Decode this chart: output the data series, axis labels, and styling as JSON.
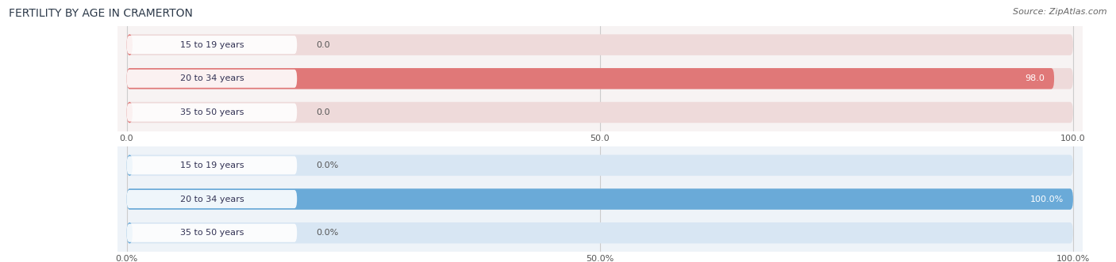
{
  "title": "FERTILITY BY AGE IN CRAMERTON",
  "source": "Source: ZipAtlas.com",
  "top_chart": {
    "categories": [
      "15 to 19 years",
      "20 to 34 years",
      "35 to 50 years"
    ],
    "values": [
      0.0,
      98.0,
      0.0
    ],
    "xlim": [
      0,
      100
    ],
    "xticks": [
      0.0,
      50.0,
      100.0
    ],
    "xtick_labels": [
      "0.0",
      "50.0",
      "100.0"
    ],
    "bar_color": "#e07878",
    "bar_bg_color": "#eedada",
    "chart_bg_color": "#f7f3f3",
    "label_color": "#ffffff",
    "value_outside_color": "#555555",
    "value_inside_color": "#ffffff"
  },
  "bottom_chart": {
    "categories": [
      "15 to 19 years",
      "20 to 34 years",
      "35 to 50 years"
    ],
    "values": [
      0.0,
      100.0,
      0.0
    ],
    "xlim": [
      0,
      100
    ],
    "xticks": [
      0.0,
      50.0,
      100.0
    ],
    "xtick_labels": [
      "0.0%",
      "50.0%",
      "100.0%"
    ],
    "bar_color": "#6aaad8",
    "bar_bg_color": "#d8e6f3",
    "chart_bg_color": "#eef3f8",
    "label_color": "#ffffff",
    "value_outside_color": "#555555",
    "value_inside_color": "#ffffff"
  },
  "fig_bg_color": "#ffffff",
  "title_fontsize": 10,
  "source_fontsize": 8,
  "value_fontsize": 8,
  "category_fontsize": 8,
  "tick_fontsize": 8
}
